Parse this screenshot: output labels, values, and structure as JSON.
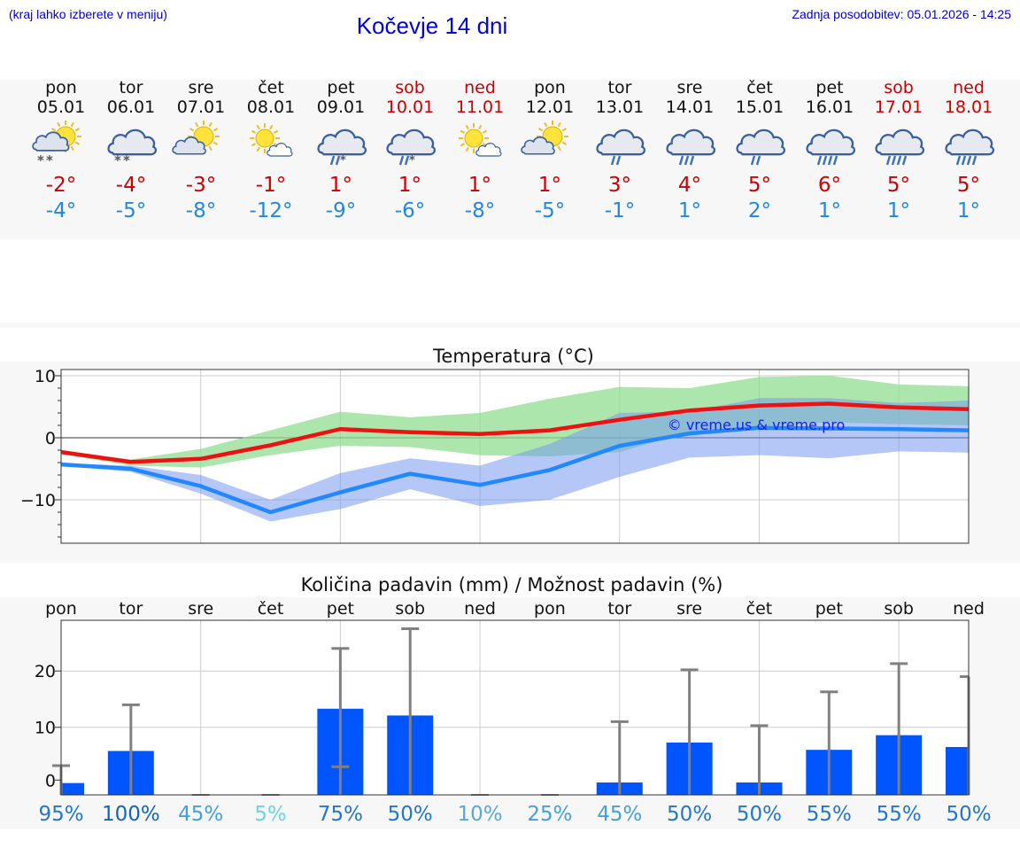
{
  "header": {
    "hint": "(kraj lahko izberete v meniju)",
    "title": "Kočevje 14 dni",
    "updated": "Zadnja posodobitev: 05.01.2026 - 14:25"
  },
  "colors": {
    "weekday_text": "#111111",
    "weekend_text": "#cc0000",
    "tmax": "#cc0000",
    "tmin": "#2288dd",
    "max_line": "#ee1111",
    "min_line": "#2288ff",
    "max_band": "#90dd90",
    "min_band": "#7799ee",
    "bar": "#0055ff"
  },
  "days": [
    {
      "name": "pon",
      "date": "05.01",
      "weekend": false,
      "icon": "sun-cloud-snow-icon",
      "tmax": "-2°",
      "tmin": "-4°"
    },
    {
      "name": "tor",
      "date": "06.01",
      "weekend": false,
      "icon": "cloud-snow-icon",
      "tmax": "-4°",
      "tmin": "-5°"
    },
    {
      "name": "sre",
      "date": "07.01",
      "weekend": false,
      "icon": "sun-cloud-icon",
      "tmax": "-3°",
      "tmin": "-8°"
    },
    {
      "name": "čet",
      "date": "08.01",
      "weekend": false,
      "icon": "sun-small-cloud-icon",
      "tmax": "-1°",
      "tmin": "-12°"
    },
    {
      "name": "pet",
      "date": "09.01",
      "weekend": false,
      "icon": "cloud-sleet-icon",
      "tmax": "1°",
      "tmin": "-9°"
    },
    {
      "name": "sob",
      "date": "10.01",
      "weekend": true,
      "icon": "cloud-sleet-icon",
      "tmax": "1°",
      "tmin": "-6°"
    },
    {
      "name": "ned",
      "date": "11.01",
      "weekend": true,
      "icon": "sun-small-cloud-icon",
      "tmax": "1°",
      "tmin": "-8°"
    },
    {
      "name": "pon",
      "date": "12.01",
      "weekend": false,
      "icon": "sun-cloud-icon",
      "tmax": "1°",
      "tmin": "-5°"
    },
    {
      "name": "tor",
      "date": "13.01",
      "weekend": false,
      "icon": "cloud-light-rain-icon",
      "tmax": "3°",
      "tmin": "-1°"
    },
    {
      "name": "sre",
      "date": "14.01",
      "weekend": false,
      "icon": "cloud-rain-icon",
      "tmax": "4°",
      "tmin": "1°"
    },
    {
      "name": "čet",
      "date": "15.01",
      "weekend": false,
      "icon": "cloud-light-rain-icon",
      "tmax": "5°",
      "tmin": "2°"
    },
    {
      "name": "pet",
      "date": "16.01",
      "weekend": false,
      "icon": "cloud-heavy-rain-icon",
      "tmax": "6°",
      "tmin": "1°"
    },
    {
      "name": "sob",
      "date": "17.01",
      "weekend": true,
      "icon": "cloud-heavy-rain-icon",
      "tmax": "5°",
      "tmin": "1°"
    },
    {
      "name": "ned",
      "date": "18.01",
      "weekend": true,
      "icon": "cloud-heavy-rain-icon",
      "tmax": "5°",
      "tmin": "1°"
    }
  ],
  "chart_data": [
    {
      "type": "line",
      "title": "Temperatura (°C)",
      "watermark": "© vreme.us & vreme.pro",
      "x": [
        1,
        2,
        3,
        4,
        5,
        6,
        7,
        8,
        9,
        10,
        11,
        12,
        13,
        14
      ],
      "ylim": [
        -17,
        11
      ],
      "yticks": [
        10,
        0,
        -10
      ],
      "ytick_labels": [
        "10",
        "0",
        "−10"
      ],
      "series": [
        {
          "name": "max",
          "values": [
            -2.3,
            -3.9,
            -3.4,
            -1.2,
            1.4,
            0.9,
            0.6,
            1.2,
            2.9,
            4.4,
            5.2,
            5.5,
            4.9,
            4.6
          ]
        },
        {
          "name": "min",
          "values": [
            -4.3,
            -5.0,
            -7.8,
            -12.0,
            -8.8,
            -5.8,
            -7.6,
            -5.2,
            -1.3,
            0.7,
            1.6,
            1.5,
            1.4,
            1.2
          ]
        },
        {
          "name": "max_range_upper",
          "values": [
            -2.0,
            -3.5,
            -1.8,
            1.2,
            4.2,
            3.3,
            4.0,
            6.3,
            8.2,
            8.0,
            9.8,
            10.0,
            8.6,
            8.3
          ]
        },
        {
          "name": "max_range_lower",
          "values": [
            -2.6,
            -4.5,
            -4.8,
            -2.8,
            -1.3,
            -1.5,
            -2.8,
            -3.0,
            -2.3,
            1.0,
            1.9,
            2.5,
            2.2,
            2.0
          ]
        },
        {
          "name": "min_range_upper",
          "values": [
            -4.1,
            -4.5,
            -6.0,
            -10.0,
            -5.7,
            -3.3,
            -4.5,
            -1.0,
            4.0,
            4.2,
            6.4,
            6.4,
            5.6,
            6.0
          ]
        },
        {
          "name": "min_range_lower",
          "values": [
            -4.5,
            -5.5,
            -9.0,
            -13.5,
            -11.5,
            -8.3,
            -11.0,
            -10.0,
            -6.3,
            -3.2,
            -2.8,
            -3.3,
            -2.2,
            -2.4
          ]
        }
      ]
    },
    {
      "type": "bar",
      "title": "Količina padavin (mm) / Možnost padavin (%)",
      "categories": [
        "pon",
        "tor",
        "sre",
        "čet",
        "pet",
        "sob",
        "ned",
        "pon",
        "tor",
        "sre",
        "čet",
        "pet",
        "sob",
        "ned"
      ],
      "values": [
        0.1,
        5.8,
        0,
        0,
        13.3,
        12.1,
        0,
        0,
        0.2,
        7.3,
        0.2,
        6.0,
        8.6,
        6.5
      ],
      "error_high": [
        3.2,
        14.0,
        0,
        0,
        24.0,
        27.5,
        0,
        0,
        11.0,
        20.2,
        10.3,
        16.3,
        21.3,
        19.0
      ],
      "error_low": [
        0,
        0,
        0,
        0,
        3.0,
        0,
        0,
        0,
        0,
        0,
        0,
        0,
        0,
        0
      ],
      "probability": [
        "95%",
        "100%",
        "45%",
        "5%",
        "75%",
        "50%",
        "10%",
        "25%",
        "45%",
        "50%",
        "50%",
        "55%",
        "55%",
        "50%"
      ],
      "probability_colors": [
        "#2277cc",
        "#1166bb",
        "#44a0dd",
        "#66d8e0",
        "#2277cc",
        "#2277cc",
        "#55aadd",
        "#44a0dd",
        "#44a0dd",
        "#2277cc",
        "#2277cc",
        "#2277cc",
        "#2277cc",
        "#2277cc"
      ],
      "ylim": [
        -2,
        29
      ],
      "yticks": [
        20,
        10,
        0
      ],
      "ytick_labels": [
        "20",
        "10",
        "0"
      ]
    }
  ]
}
